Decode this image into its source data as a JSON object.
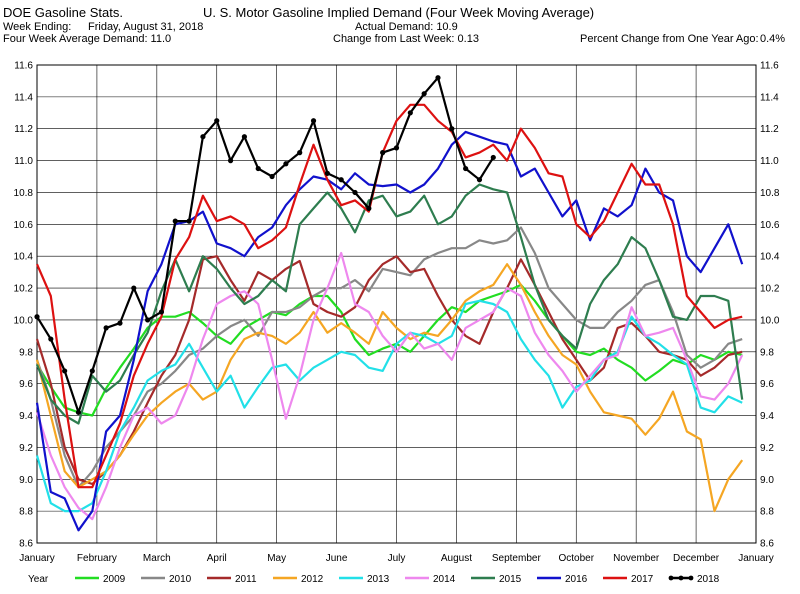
{
  "header": {
    "source": "DOE Gasoline Stats.",
    "title": "U. S. Motor Gasoline Implied Demand (Four Week Moving Average)",
    "week_ending_label": "Week Ending:",
    "week_ending_value": "Friday, August 31, 2018",
    "actual_demand": "Actual Demand: 10.9",
    "four_week_avg": "Four Week Average Demand: 11.0",
    "change_last_week": "Change from Last Week: 0.13",
    "pct_change_label": "Percent Change from One Year Ago:",
    "pct_change_value": "0.4%"
  },
  "chart_data": {
    "type": "line",
    "title": "U. S. Motor Gasoline Implied Demand (Four Week Moving Average)",
    "xlabel": "",
    "ylabel": "",
    "ylim": [
      8.6,
      11.6
    ],
    "yticks": [
      "8.6",
      "8.8",
      "9.0",
      "9.2",
      "9.4",
      "9.6",
      "9.8",
      "10.0",
      "10.2",
      "10.4",
      "10.6",
      "10.8",
      "11.0",
      "11.2",
      "11.4",
      "11.6"
    ],
    "months": [
      "January",
      "February",
      "March",
      "April",
      "May",
      "June",
      "July",
      "August",
      "September",
      "October",
      "November",
      "December",
      "January"
    ],
    "xlim": [
      1,
      53
    ],
    "grid": true,
    "legend_title": "Year",
    "legend_position": "bottom",
    "series": [
      {
        "name": "2009",
        "color": "#22dd22",
        "marker": false,
        "y": [
          9.72,
          9.58,
          9.45,
          9.42,
          9.4,
          9.57,
          9.7,
          9.82,
          9.95,
          10.02,
          10.02,
          10.05,
          9.98,
          9.9,
          9.85,
          9.95,
          10.0,
          10.05,
          10.03,
          10.1,
          10.15,
          10.15,
          10.05,
          9.88,
          9.78,
          9.82,
          9.85,
          9.8,
          9.9,
          10.0,
          10.08,
          10.05,
          10.12,
          10.15,
          10.18,
          10.22,
          10.12,
          10.0,
          9.9,
          9.8,
          9.78,
          9.82,
          9.75,
          9.7,
          9.62,
          9.68,
          9.75,
          9.72,
          9.78,
          9.75,
          9.8,
          9.78
        ]
      },
      {
        "name": "2010",
        "color": "#888888",
        "marker": false,
        "y": [
          9.75,
          9.5,
          9.15,
          8.95,
          9.05,
          9.2,
          9.3,
          9.4,
          9.55,
          9.6,
          9.68,
          9.78,
          9.82,
          9.9,
          9.96,
          10.0,
          9.9,
          10.05,
          10.05,
          10.08,
          10.15,
          10.2,
          10.2,
          10.25,
          10.18,
          10.32,
          10.3,
          10.28,
          10.38,
          10.42,
          10.45,
          10.45,
          10.5,
          10.48,
          10.5,
          10.58,
          10.42,
          10.2,
          10.1,
          10.0,
          9.95,
          9.95,
          10.05,
          10.12,
          10.22,
          10.25,
          10.05,
          9.78,
          9.7,
          9.75,
          9.85,
          9.88
        ]
      },
      {
        "name": "2011",
        "color": "#a52a2a",
        "marker": false,
        "y": [
          9.88,
          9.6,
          9.2,
          9.0,
          8.97,
          9.05,
          9.15,
          9.3,
          9.48,
          9.65,
          9.78,
          10.0,
          10.38,
          10.4,
          10.25,
          10.12,
          10.3,
          10.25,
          10.32,
          10.37,
          10.1,
          10.05,
          10.02,
          10.08,
          10.25,
          10.35,
          10.4,
          10.3,
          10.32,
          10.15,
          10.0,
          9.9,
          9.85,
          10.05,
          10.2,
          10.38,
          10.22,
          10.05,
          9.88,
          9.75,
          9.62,
          9.7,
          9.95,
          9.98,
          9.9,
          9.8,
          9.78,
          9.75,
          9.65,
          9.7,
          9.78,
          9.8
        ]
      },
      {
        "name": "2012",
        "color": "#f5a623",
        "marker": false,
        "y": [
          9.75,
          9.4,
          9.05,
          8.95,
          9.0,
          9.05,
          9.15,
          9.28,
          9.4,
          9.48,
          9.55,
          9.6,
          9.5,
          9.55,
          9.75,
          9.88,
          9.92,
          9.9,
          9.85,
          9.92,
          10.05,
          9.92,
          9.98,
          9.92,
          9.85,
          10.05,
          9.95,
          9.88,
          9.92,
          9.9,
          10.0,
          10.12,
          10.18,
          10.22,
          10.35,
          10.22,
          10.05,
          9.9,
          9.78,
          9.72,
          9.55,
          9.42,
          9.4,
          9.38,
          9.28,
          9.38,
          9.55,
          9.3,
          9.25,
          8.8,
          9.0,
          9.12
        ]
      },
      {
        "name": "2013",
        "color": "#22e0e8",
        "marker": false,
        "y": [
          9.15,
          8.85,
          8.8,
          8.8,
          8.85,
          9.05,
          9.3,
          9.45,
          9.62,
          9.68,
          9.72,
          9.85,
          9.7,
          9.55,
          9.65,
          9.45,
          9.58,
          9.7,
          9.72,
          9.62,
          9.7,
          9.75,
          9.8,
          9.78,
          9.7,
          9.68,
          9.85,
          9.92,
          9.9,
          9.85,
          9.9,
          10.1,
          10.12,
          10.1,
          10.05,
          9.88,
          9.75,
          9.65,
          9.45,
          9.58,
          9.62,
          9.75,
          9.8,
          10.02,
          9.9,
          9.85,
          9.78,
          9.72,
          9.45,
          9.42,
          9.52,
          9.48
        ]
      },
      {
        "name": "2014",
        "color": "#ee88ee",
        "marker": false,
        "y": [
          9.42,
          9.15,
          8.95,
          8.82,
          8.75,
          8.95,
          9.2,
          9.4,
          9.45,
          9.35,
          9.4,
          9.6,
          9.88,
          10.1,
          10.15,
          10.18,
          10.1,
          9.75,
          9.38,
          9.65,
          10.0,
          10.2,
          10.42,
          10.1,
          10.05,
          9.9,
          9.8,
          9.92,
          9.82,
          9.85,
          9.75,
          9.95,
          10.0,
          10.05,
          10.2,
          10.15,
          9.92,
          9.78,
          9.68,
          9.55,
          9.65,
          9.75,
          9.78,
          10.08,
          9.9,
          9.92,
          9.95,
          9.75,
          9.52,
          9.5,
          9.6,
          9.78
        ]
      },
      {
        "name": "2015",
        "color": "#2e7d4f",
        "marker": false,
        "y": [
          9.72,
          9.5,
          9.4,
          9.35,
          9.65,
          9.55,
          9.62,
          9.78,
          9.92,
          10.18,
          10.38,
          10.18,
          10.4,
          10.32,
          10.2,
          10.1,
          10.15,
          10.25,
          10.18,
          10.6,
          10.7,
          10.8,
          10.7,
          10.55,
          10.75,
          10.78,
          10.65,
          10.68,
          10.78,
          10.6,
          10.65,
          10.78,
          10.85,
          10.82,
          10.8,
          10.52,
          10.22,
          10.0,
          9.9,
          9.82,
          10.1,
          10.25,
          10.35,
          10.52,
          10.45,
          10.25,
          10.02,
          10.0,
          10.15,
          10.15,
          10.12,
          9.5
        ]
      },
      {
        "name": "2016",
        "color": "#1111cc",
        "marker": false,
        "y": [
          9.48,
          8.92,
          8.88,
          8.68,
          8.8,
          9.3,
          9.4,
          9.75,
          10.18,
          10.35,
          10.6,
          10.62,
          10.68,
          10.48,
          10.45,
          10.4,
          10.52,
          10.58,
          10.72,
          10.82,
          10.9,
          10.88,
          10.82,
          10.92,
          10.85,
          10.84,
          10.85,
          10.8,
          10.85,
          10.95,
          11.1,
          11.18,
          11.15,
          11.12,
          11.1,
          10.9,
          10.95,
          10.8,
          10.65,
          10.75,
          10.5,
          10.7,
          10.65,
          10.72,
          10.95,
          10.8,
          10.75,
          10.4,
          10.3,
          10.45,
          10.6,
          10.35
        ]
      },
      {
        "name": "2017",
        "color": "#dd1111",
        "marker": false,
        "y": [
          10.35,
          10.15,
          9.5,
          8.95,
          8.95,
          9.15,
          9.35,
          9.65,
          9.85,
          10.02,
          10.38,
          10.52,
          10.78,
          10.62,
          10.65,
          10.6,
          10.45,
          10.5,
          10.58,
          10.85,
          11.1,
          10.88,
          10.72,
          10.75,
          10.68,
          11.05,
          11.25,
          11.35,
          11.35,
          11.25,
          11.18,
          11.02,
          11.05,
          11.1,
          11.0,
          11.2,
          11.08,
          10.92,
          10.9,
          10.6,
          10.52,
          10.62,
          10.8,
          10.98,
          10.85,
          10.85,
          10.6,
          10.15,
          10.05,
          9.95,
          10.0,
          10.02
        ]
      },
      {
        "name": "2018",
        "color": "#000000",
        "marker": true,
        "y": [
          10.02,
          9.88,
          9.68,
          9.42,
          9.68,
          9.95,
          9.98,
          10.2,
          10.0,
          10.05,
          10.62,
          10.62,
          11.15,
          11.25,
          11.0,
          11.15,
          10.95,
          10.9,
          10.98,
          11.05,
          11.25,
          10.92,
          10.88,
          10.8,
          10.7,
          11.05,
          11.08,
          11.3,
          11.42,
          11.52,
          11.2,
          10.95,
          10.88,
          11.02
        ]
      }
    ]
  }
}
